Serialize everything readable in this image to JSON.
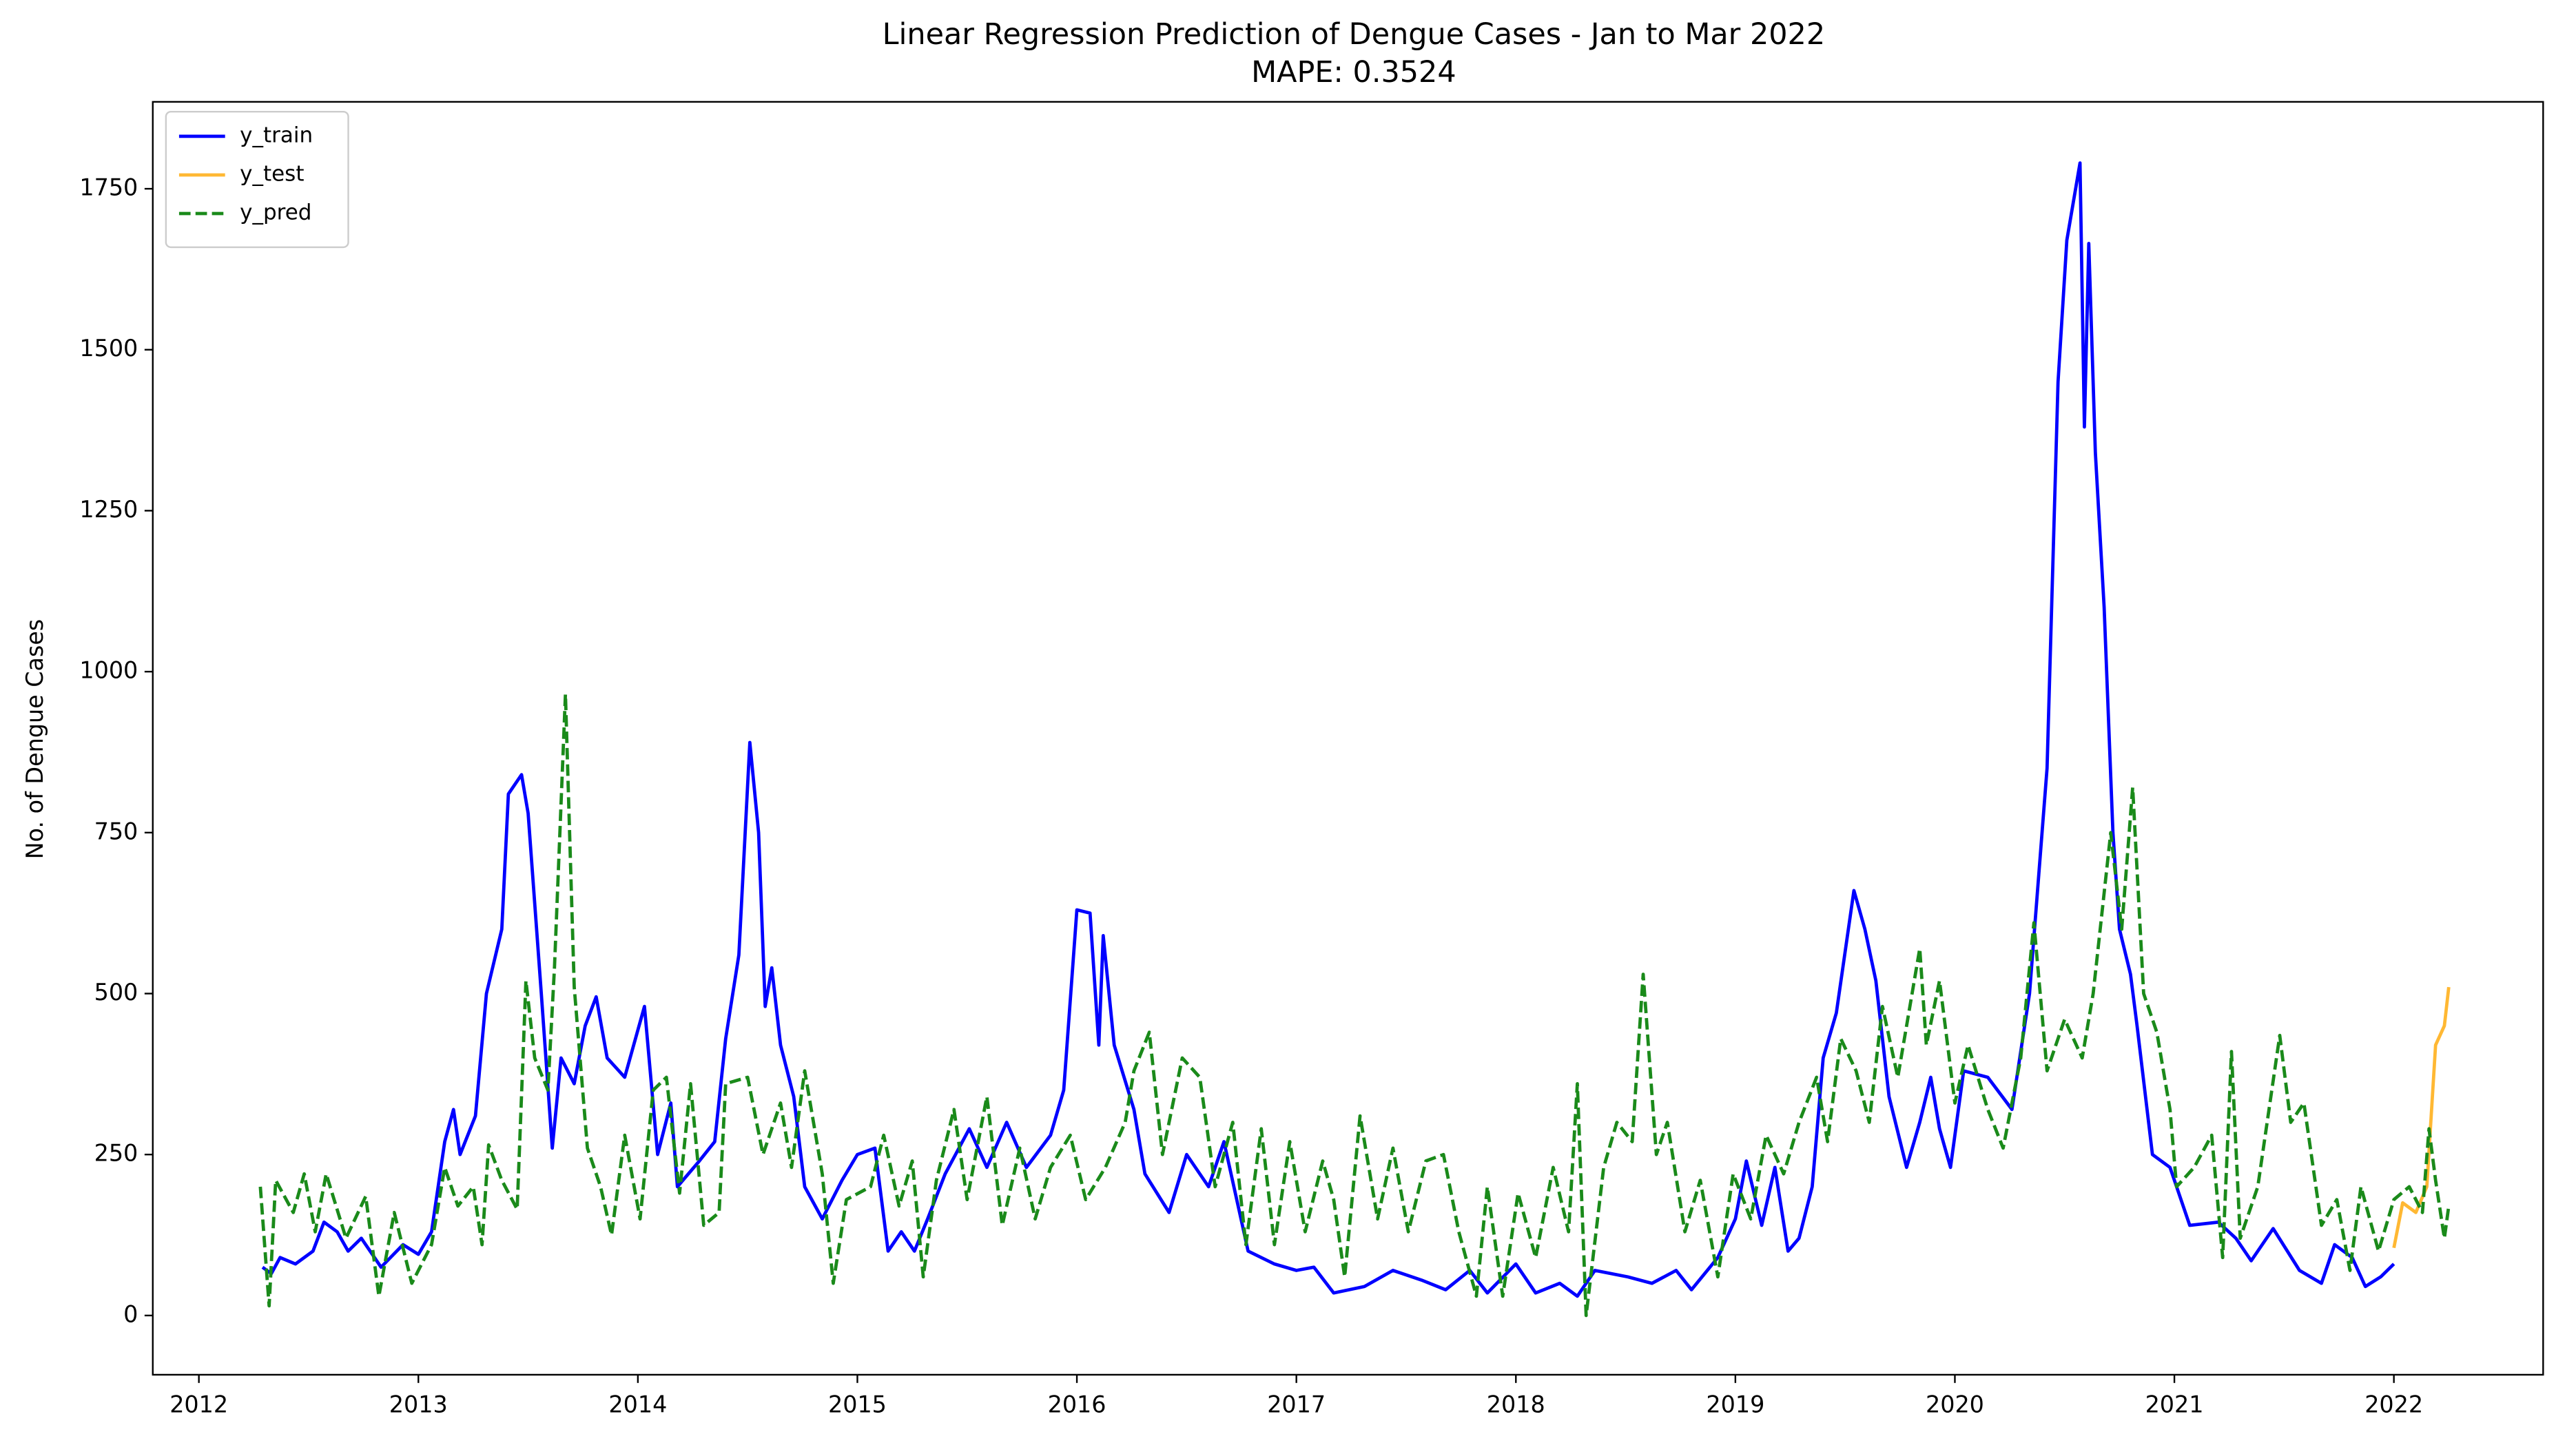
{
  "chart_data": {
    "type": "line",
    "title": "Linear Regression Prediction of Dengue Cases - Jan to Mar 2022",
    "subtitle": "MAPE: 0.3524",
    "y_label": "No. of Dengue Cases",
    "xlim": [
      2011.79,
      2022.68
    ],
    "xticks": [
      2012,
      2013,
      2014,
      2015,
      2016,
      2017,
      2018,
      2019,
      2020,
      2021,
      2022
    ],
    "ylim": [
      -92,
      1885
    ],
    "yticks": [
      0,
      250,
      500,
      750,
      1000,
      1250,
      1500,
      1750
    ],
    "grid": false,
    "legend": "upper left",
    "series": [
      {
        "name": "y_train",
        "color": "#0000ff",
        "linestyle": "solid",
        "x": [
          2012.29,
          2012.33,
          2012.37,
          2012.44,
          2012.52,
          2012.57,
          2012.63,
          2012.68,
          2012.74,
          2012.83,
          2012.93,
          2013.0,
          2013.06,
          2013.12,
          2013.16,
          2013.19,
          2013.26,
          2013.31,
          2013.38,
          2013.41,
          2013.47,
          2013.5,
          2013.56,
          2013.61,
          2013.65,
          2013.71,
          2013.76,
          2013.81,
          2013.86,
          2013.94,
          2014.03,
          2014.09,
          2014.15,
          2014.18,
          2014.28,
          2014.35,
          2014.4,
          2014.46,
          2014.51,
          2014.55,
          2014.58,
          2014.61,
          2014.65,
          2014.71,
          2014.76,
          2014.84,
          2014.93,
          2015.0,
          2015.08,
          2015.14,
          2015.2,
          2015.26,
          2015.32,
          2015.4,
          2015.51,
          2015.59,
          2015.68,
          2015.77,
          2015.88,
          2015.94,
          2016.0,
          2016.06,
          2016.1,
          2016.12,
          2016.17,
          2016.26,
          2016.31,
          2016.42,
          2016.5,
          2016.6,
          2016.67,
          2016.78,
          2016.9,
          2017.0,
          2017.08,
          2017.17,
          2017.31,
          2017.44,
          2017.57,
          2017.68,
          2017.79,
          2017.87,
          2018.0,
          2018.09,
          2018.2,
          2018.28,
          2018.36,
          2018.51,
          2018.62,
          2018.73,
          2018.8,
          2018.92,
          2019.0,
          2019.05,
          2019.12,
          2019.18,
          2019.24,
          2019.29,
          2019.35,
          2019.4,
          2019.46,
          2019.54,
          2019.59,
          2019.64,
          2019.7,
          2019.78,
          2019.84,
          2019.89,
          2019.93,
          2019.98,
          2020.04,
          2020.15,
          2020.26,
          2020.34,
          2020.42,
          2020.47,
          2020.51,
          2020.57,
          2020.59,
          2020.61,
          2020.64,
          2020.68,
          2020.72,
          2020.75,
          2020.8,
          2020.83,
          2020.9,
          2020.98,
          2021.07,
          2021.2,
          2021.28,
          2021.35,
          2021.45,
          2021.57,
          2021.67,
          2021.73,
          2021.81,
          2021.87,
          2021.94,
          2022.0
        ],
        "values": [
          75,
          65,
          90,
          80,
          100,
          145,
          130,
          100,
          120,
          75,
          110,
          95,
          130,
          270,
          320,
          250,
          310,
          500,
          600,
          810,
          840,
          780,
          500,
          260,
          400,
          360,
          450,
          495,
          400,
          370,
          480,
          250,
          330,
          200,
          240,
          270,
          430,
          560,
          890,
          750,
          480,
          540,
          420,
          340,
          200,
          150,
          210,
          250,
          260,
          100,
          130,
          100,
          150,
          220,
          290,
          230,
          300,
          230,
          280,
          350,
          630,
          625,
          420,
          590,
          420,
          320,
          220,
          160,
          250,
          200,
          270,
          100,
          80,
          70,
          75,
          35,
          45,
          70,
          55,
          40,
          70,
          35,
          80,
          35,
          50,
          30,
          70,
          60,
          50,
          70,
          40,
          90,
          150,
          240,
          140,
          230,
          100,
          120,
          200,
          400,
          470,
          660,
          600,
          520,
          340,
          230,
          300,
          370,
          290,
          230,
          380,
          370,
          320,
          500,
          850,
          1450,
          1670,
          1790,
          1380,
          1665,
          1340,
          1100,
          750,
          600,
          530,
          450,
          250,
          230,
          140,
          145,
          120,
          85,
          135,
          70,
          50,
          110,
          90,
          45,
          60,
          80
        ]
      },
      {
        "name": "y_test",
        "color": "#ffb833",
        "linestyle": "solid",
        "x": [
          2022.0,
          2022.04,
          2022.1,
          2022.15,
          2022.19,
          2022.23,
          2022.25
        ],
        "values": [
          105,
          175,
          160,
          200,
          420,
          450,
          510
        ]
      },
      {
        "name": "y_pred",
        "color": "#1a8a1a",
        "linestyle": "dashed",
        "x": [
          2012.28,
          2012.32,
          2012.35,
          2012.43,
          2012.48,
          2012.53,
          2012.58,
          2012.67,
          2012.76,
          2012.82,
          2012.89,
          2012.97,
          2013.06,
          2013.12,
          2013.18,
          2013.25,
          2013.29,
          2013.32,
          2013.38,
          2013.45,
          2013.49,
          2013.53,
          2013.59,
          2013.62,
          2013.67,
          2013.71,
          2013.77,
          2013.83,
          2013.88,
          2013.94,
          2014.01,
          2014.07,
          2014.13,
          2014.19,
          2014.24,
          2014.3,
          2014.37,
          2014.4,
          2014.5,
          2014.57,
          2014.65,
          2014.7,
          2014.76,
          2014.84,
          2014.89,
          2014.95,
          2015.06,
          2015.12,
          2015.19,
          2015.25,
          2015.3,
          2015.36,
          2015.44,
          2015.5,
          2015.59,
          2015.66,
          2015.74,
          2015.81,
          2015.88,
          2015.97,
          2016.04,
          2016.13,
          2016.22,
          2016.26,
          2016.33,
          2016.39,
          2016.48,
          2016.56,
          2016.63,
          2016.71,
          2016.77,
          2016.84,
          2016.9,
          2016.97,
          2017.04,
          2017.12,
          2017.17,
          2017.22,
          2017.29,
          2017.37,
          2017.44,
          2017.51,
          2017.59,
          2017.67,
          2017.74,
          2017.82,
          2017.87,
          2017.94,
          2018.01,
          2018.09,
          2018.17,
          2018.24,
          2018.28,
          2018.32,
          2018.4,
          2018.46,
          2018.53,
          2018.58,
          2018.64,
          2018.69,
          2018.77,
          2018.84,
          2018.92,
          2018.99,
          2019.07,
          2019.14,
          2019.22,
          2019.29,
          2019.37,
          2019.42,
          2019.48,
          2019.55,
          2019.61,
          2019.67,
          2019.74,
          2019.84,
          2019.87,
          2019.93,
          2020.0,
          2020.06,
          2020.15,
          2020.22,
          2020.3,
          2020.36,
          2020.42,
          2020.5,
          2020.58,
          2020.63,
          2020.71,
          2020.76,
          2020.81,
          2020.86,
          2020.92,
          2020.98,
          2021.01,
          2021.09,
          2021.17,
          2021.22,
          2021.26,
          2021.3,
          2021.38,
          2021.48,
          2021.53,
          2021.59,
          2021.67,
          2021.74,
          2021.8,
          2021.85,
          2021.93,
          2022.0,
          2022.07,
          2022.13,
          2022.16,
          2022.19,
          2022.23,
          2022.25
        ],
        "values": [
          200,
          15,
          210,
          160,
          220,
          130,
          220,
          120,
          185,
          30,
          160,
          50,
          110,
          230,
          170,
          200,
          110,
          265,
          210,
          165,
          520,
          400,
          350,
          540,
          965,
          510,
          260,
          200,
          125,
          280,
          150,
          350,
          370,
          190,
          360,
          140,
          160,
          360,
          370,
          250,
          330,
          230,
          380,
          220,
          50,
          180,
          200,
          280,
          170,
          240,
          60,
          210,
          320,
          180,
          340,
          140,
          260,
          150,
          230,
          280,
          180,
          230,
          300,
          380,
          440,
          250,
          400,
          370,
          200,
          300,
          110,
          290,
          110,
          270,
          130,
          240,
          180,
          60,
          310,
          150,
          260,
          130,
          240,
          250,
          130,
          30,
          200,
          30,
          190,
          90,
          230,
          130,
          360,
          0,
          230,
          300,
          270,
          530,
          250,
          300,
          130,
          210,
          60,
          220,
          150,
          280,
          220,
          300,
          370,
          270,
          430,
          380,
          300,
          480,
          370,
          570,
          420,
          520,
          330,
          420,
          320,
          260,
          400,
          610,
          380,
          460,
          400,
          500,
          750,
          600,
          820,
          500,
          440,
          320,
          200,
          230,
          280,
          90,
          410,
          120,
          200,
          435,
          300,
          330,
          140,
          180,
          70,
          200,
          100,
          180,
          200,
          160,
          290,
          210,
          120,
          170
        ]
      }
    ]
  }
}
